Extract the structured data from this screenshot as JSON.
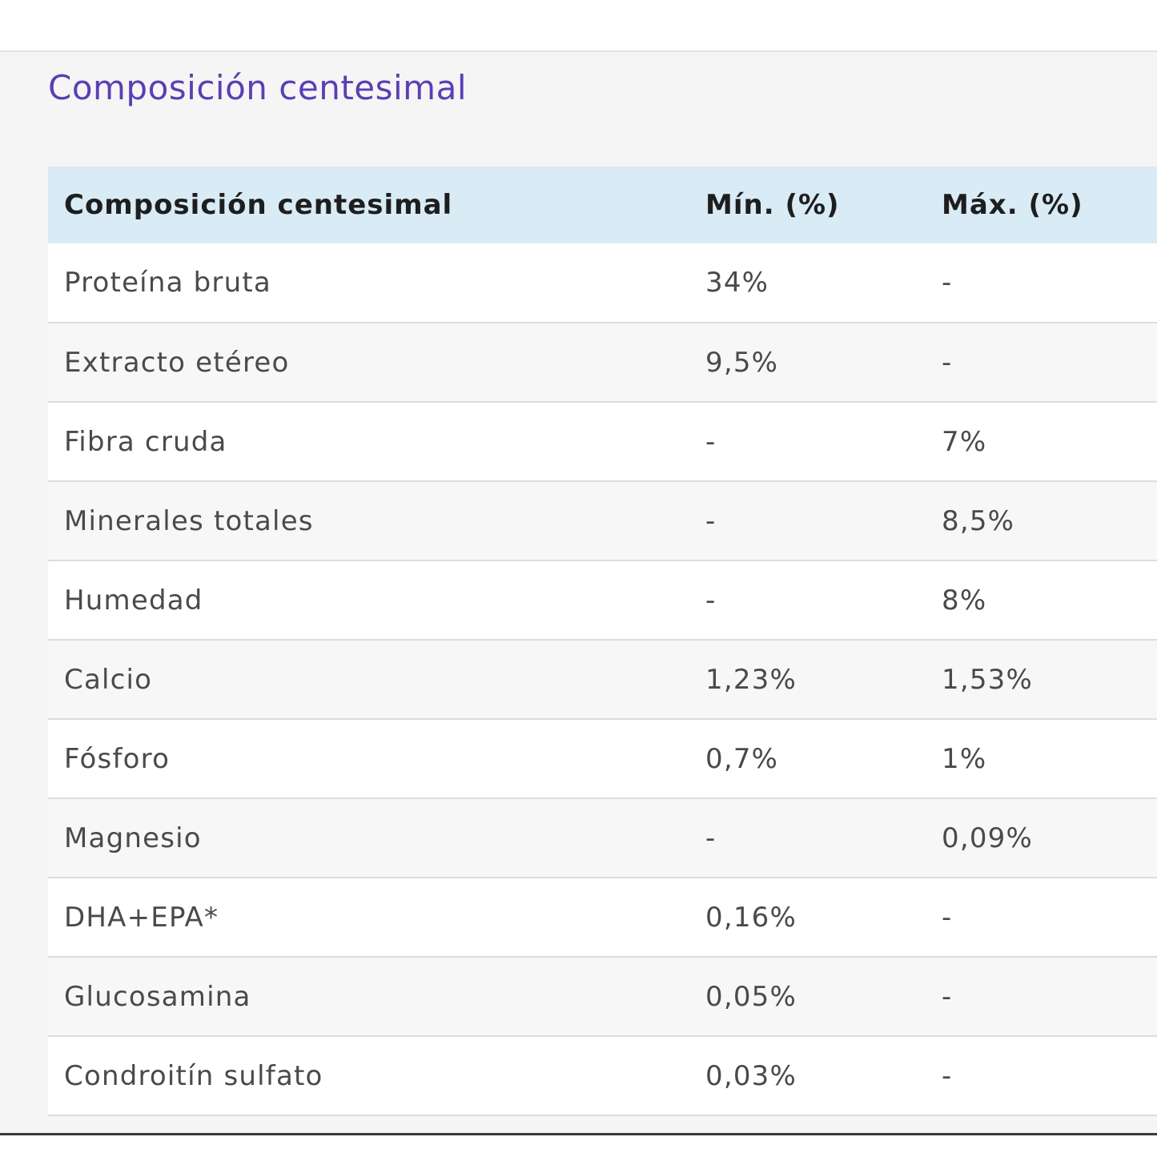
{
  "section": {
    "title": "Composición centesimal"
  },
  "table": {
    "headers": [
      "Composición centesimal",
      "Mín. (%)",
      "Máx. (%)"
    ],
    "rows": [
      [
        "Proteína bruta",
        "34%",
        "-"
      ],
      [
        "Extracto etéreo",
        "9,5%",
        "-"
      ],
      [
        "Fibra cruda",
        "-",
        "7%"
      ],
      [
        "Minerales totales",
        "-",
        "8,5%"
      ],
      [
        "Humedad",
        "-",
        "8%"
      ],
      [
        "Calcio",
        "1,23%",
        "1,53%"
      ],
      [
        "Fósforo",
        "0,7%",
        "1%"
      ],
      [
        "Magnesio",
        "-",
        "0,09%"
      ],
      [
        "DHA+EPA*",
        "0,16%",
        "-"
      ],
      [
        "Glucosamina",
        "0,05%",
        "-"
      ],
      [
        "Condroitín sulfato",
        "0,03%",
        "-"
      ]
    ]
  },
  "colors": {
    "title": "#5a3fb3",
    "header_background": "#d9ebf5",
    "panel_background": "#f5f5f5"
  }
}
